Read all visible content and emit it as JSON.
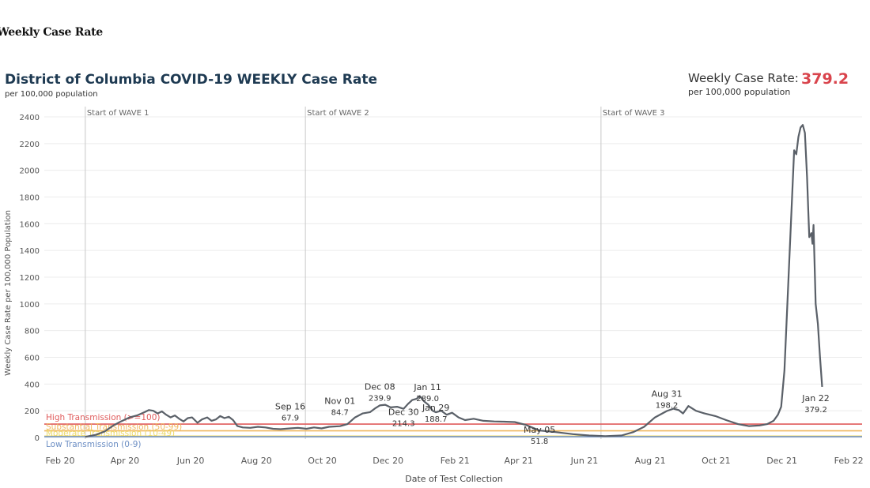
{
  "page_heading": "Weekly Case Rate",
  "chart_data": {
    "type": "line",
    "title": "District of Columbia COVID-19 WEEKLY Case Rate",
    "subtitle": "per 100,000 population",
    "kpi": {
      "label": "Weekly Case Rate:",
      "value": "379.2",
      "sublabel": "per 100,000 population",
      "value_color": "#d9444c"
    },
    "xlabel": "Date of Test Collection",
    "ylabel": "Weekly Case Rate per 100,000 Population",
    "ylim": [
      0,
      2400
    ],
    "yticks": [
      0,
      200,
      400,
      600,
      800,
      1000,
      1200,
      1400,
      1600,
      1800,
      2000,
      2200,
      2400
    ],
    "xlim": [
      "2020-02-01",
      "2022-02-28"
    ],
    "xticks": [
      {
        "date": "2020-02-01",
        "label": "Feb 20"
      },
      {
        "date": "2020-04-01",
        "label": "Apr 20"
      },
      {
        "date": "2020-06-01",
        "label": "Jun 20"
      },
      {
        "date": "2020-08-01",
        "label": "Aug 20"
      },
      {
        "date": "2020-10-01",
        "label": "Oct 20"
      },
      {
        "date": "2020-12-01",
        "label": "Dec 20"
      },
      {
        "date": "2021-02-01",
        "label": "Feb 21"
      },
      {
        "date": "2021-04-01",
        "label": "Apr 21"
      },
      {
        "date": "2021-06-01",
        "label": "Jun 21"
      },
      {
        "date": "2021-08-01",
        "label": "Aug 21"
      },
      {
        "date": "2021-10-01",
        "label": "Oct 21"
      },
      {
        "date": "2021-12-01",
        "label": "Dec 21"
      },
      {
        "date": "2022-02-01",
        "label": "Feb 22"
      }
    ],
    "grid": true,
    "line_color": "#5a6068",
    "wave_markers": [
      {
        "date": "2020-03-10",
        "label": "Start of WAVE 1"
      },
      {
        "date": "2020-09-30",
        "label": "Start of WAVE 2"
      },
      {
        "date": "2021-07-01",
        "label": "Start of WAVE 3"
      }
    ],
    "thresholds": [
      {
        "label": "High Transmission (>=100)",
        "value": 100,
        "color": "#e05c5c"
      },
      {
        "label": "Substantial Transmission (50-99)",
        "value": 50,
        "color": "#f0b860"
      },
      {
        "label": "Moderate Transmission (10-49)",
        "value": 10,
        "color": "#ecd96a"
      },
      {
        "label": "Low Transmission (0-9)",
        "value": 0,
        "color": "#6d8fc4"
      }
    ],
    "annotations": [
      {
        "date": "2020-09-16",
        "value": 67.9,
        "label": "Sep 16",
        "value_label": "67.9"
      },
      {
        "date": "2020-11-01",
        "value": 84.7,
        "label": "Nov 01",
        "value_label": "84.7"
      },
      {
        "date": "2020-12-08",
        "value": 239.9,
        "label": "Dec 08",
        "value_label": "239.9"
      },
      {
        "date": "2020-12-30",
        "value": 214.3,
        "label": "Dec 30",
        "value_label": "214.3"
      },
      {
        "date": "2021-01-11",
        "value": 289.0,
        "label": "Jan 11",
        "value_label": "289.0"
      },
      {
        "date": "2021-01-29",
        "value": 188.7,
        "label": "Jan 29",
        "value_label": "188.7"
      },
      {
        "date": "2021-05-05",
        "value": 51.8,
        "label": "May 05",
        "value_label": "51.8"
      },
      {
        "date": "2021-08-31",
        "value": 198.2,
        "label": "Aug 31",
        "value_label": "198.2"
      },
      {
        "date": "2022-01-22",
        "value": 379.2,
        "label": "Jan 22",
        "value_label": "379.2"
      }
    ],
    "series": [
      {
        "points": [
          [
            "2020-03-10",
            5
          ],
          [
            "2020-03-20",
            20
          ],
          [
            "2020-03-28",
            45
          ],
          [
            "2020-04-05",
            90
          ],
          [
            "2020-04-12",
            120
          ],
          [
            "2020-04-20",
            150
          ],
          [
            "2020-04-27",
            165
          ],
          [
            "2020-05-04",
            190
          ],
          [
            "2020-05-08",
            205
          ],
          [
            "2020-05-12",
            200
          ],
          [
            "2020-05-16",
            180
          ],
          [
            "2020-05-20",
            195
          ],
          [
            "2020-05-24",
            170
          ],
          [
            "2020-05-28",
            150
          ],
          [
            "2020-06-01",
            165
          ],
          [
            "2020-06-05",
            140
          ],
          [
            "2020-06-09",
            120
          ],
          [
            "2020-06-13",
            145
          ],
          [
            "2020-06-17",
            150
          ],
          [
            "2020-06-22",
            110
          ],
          [
            "2020-06-26",
            135
          ],
          [
            "2020-07-01",
            150
          ],
          [
            "2020-07-05",
            125
          ],
          [
            "2020-07-09",
            135
          ],
          [
            "2020-07-13",
            160
          ],
          [
            "2020-07-17",
            145
          ],
          [
            "2020-07-21",
            155
          ],
          [
            "2020-07-25",
            130
          ],
          [
            "2020-07-29",
            85
          ],
          [
            "2020-08-03",
            75
          ],
          [
            "2020-08-10",
            72
          ],
          [
            "2020-08-17",
            80
          ],
          [
            "2020-08-24",
            75
          ],
          [
            "2020-08-31",
            65
          ],
          [
            "2020-09-07",
            62
          ],
          [
            "2020-09-16",
            67.9
          ],
          [
            "2020-09-23",
            72
          ],
          [
            "2020-10-01",
            65
          ],
          [
            "2020-10-08",
            75
          ],
          [
            "2020-10-15",
            68
          ],
          [
            "2020-10-22",
            80
          ],
          [
            "2020-11-01",
            84.7
          ],
          [
            "2020-11-08",
            100
          ],
          [
            "2020-11-15",
            150
          ],
          [
            "2020-11-22",
            180
          ],
          [
            "2020-11-29",
            190
          ],
          [
            "2020-12-04",
            220
          ],
          [
            "2020-12-08",
            239.9
          ],
          [
            "2020-12-13",
            245
          ],
          [
            "2020-12-18",
            225
          ],
          [
            "2020-12-24",
            230
          ],
          [
            "2020-12-30",
            214.3
          ],
          [
            "2021-01-03",
            250
          ],
          [
            "2021-01-07",
            280
          ],
          [
            "2021-01-11",
            289.0
          ],
          [
            "2021-01-14",
            310
          ],
          [
            "2021-01-18",
            270
          ],
          [
            "2021-01-22",
            245
          ],
          [
            "2021-01-26",
            200
          ],
          [
            "2021-01-29",
            188.7
          ],
          [
            "2021-02-03",
            200
          ],
          [
            "2021-02-08",
            170
          ],
          [
            "2021-02-13",
            185
          ],
          [
            "2021-02-19",
            150
          ],
          [
            "2021-02-25",
            130
          ],
          [
            "2021-03-05",
            140
          ],
          [
            "2021-03-14",
            125
          ],
          [
            "2021-03-24",
            120
          ],
          [
            "2021-04-02",
            118
          ],
          [
            "2021-04-12",
            115
          ],
          [
            "2021-04-22",
            95
          ],
          [
            "2021-05-05",
            51.8
          ],
          [
            "2021-05-20",
            40
          ],
          [
            "2021-06-05",
            25
          ],
          [
            "2021-06-20",
            15
          ],
          [
            "2021-07-05",
            10
          ],
          [
            "2021-07-20",
            15
          ],
          [
            "2021-07-31",
            40
          ],
          [
            "2021-08-10",
            80
          ],
          [
            "2021-08-20",
            150
          ],
          [
            "2021-08-31",
            198.2
          ],
          [
            "2021-09-06",
            215
          ],
          [
            "2021-09-11",
            205
          ],
          [
            "2021-09-15",
            180
          ],
          [
            "2021-09-20",
            235
          ],
          [
            "2021-09-27",
            200
          ],
          [
            "2021-10-05",
            180
          ],
          [
            "2021-10-15",
            160
          ],
          [
            "2021-10-25",
            130
          ],
          [
            "2021-11-05",
            100
          ],
          [
            "2021-11-15",
            85
          ],
          [
            "2021-11-25",
            90
          ],
          [
            "2021-12-02",
            100
          ],
          [
            "2021-12-08",
            125
          ],
          [
            "2021-12-12",
            170
          ],
          [
            "2021-12-15",
            230
          ],
          [
            "2021-12-18",
            500
          ],
          [
            "2021-12-21",
            1050
          ],
          [
            "2021-12-24",
            1600
          ],
          [
            "2021-12-27",
            2150
          ],
          [
            "2021-12-29",
            2120
          ],
          [
            "2021-12-31",
            2250
          ],
          [
            "2022-01-02",
            2320
          ],
          [
            "2022-01-04",
            2340
          ],
          [
            "2022-01-06",
            2280
          ],
          [
            "2022-01-08",
            1950
          ],
          [
            "2022-01-10",
            1500
          ],
          [
            "2022-01-12",
            1530
          ],
          [
            "2022-01-13",
            1450
          ],
          [
            "2022-01-14",
            1590
          ],
          [
            "2022-01-16",
            1000
          ],
          [
            "2022-01-18",
            850
          ],
          [
            "2022-01-20",
            600
          ],
          [
            "2022-01-22",
            379.2
          ]
        ]
      }
    ]
  }
}
